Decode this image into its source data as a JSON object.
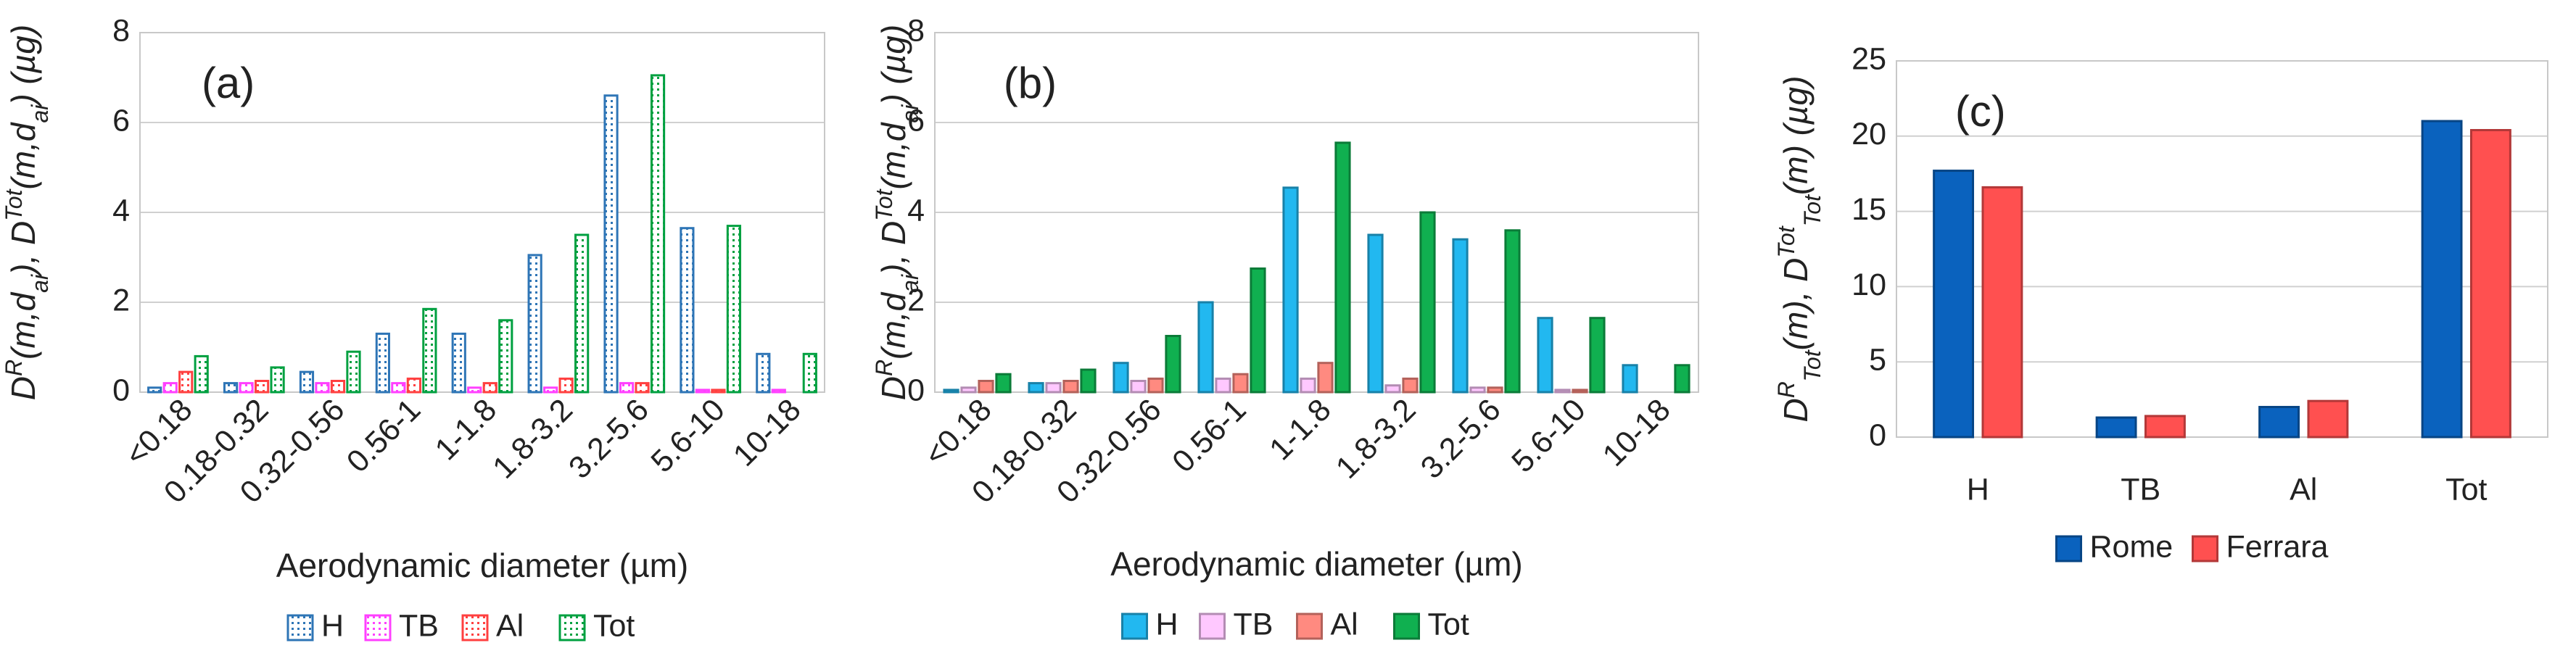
{
  "chart_data": [
    {
      "type": "bar",
      "panel_label": "(a)",
      "pattern_fill": true,
      "categories": [
        "<0.18",
        "0.18-0.32",
        "0.32-0.56",
        "0.56-1",
        "1-1.8",
        "1.8-3.2",
        "3.2-5.6",
        "5.6-10",
        "10-18"
      ],
      "series": [
        {
          "name": "H",
          "color": "#2e75b6",
          "values": [
            0.1,
            0.2,
            0.45,
            1.3,
            1.3,
            3.05,
            6.6,
            3.65,
            0.85
          ]
        },
        {
          "name": "TB",
          "color": "#ff40ff",
          "values": [
            0.2,
            0.2,
            0.2,
            0.2,
            0.1,
            0.1,
            0.2,
            0.05,
            0.05
          ]
        },
        {
          "name": "Al",
          "color": "#ff4040",
          "values": [
            0.45,
            0.25,
            0.25,
            0.3,
            0.2,
            0.3,
            0.2,
            0.05,
            0
          ]
        },
        {
          "name": "Tot",
          "color": "#00a040",
          "values": [
            0.8,
            0.55,
            0.9,
            1.85,
            1.6,
            3.5,
            7.05,
            3.7,
            0.85
          ]
        }
      ],
      "ylim": [
        0,
        8
      ],
      "yticks": [
        0,
        2,
        4,
        6,
        8
      ],
      "grid": true,
      "xlabel": "Aerodynamic diameter (µm)",
      "ylabel_parts": [
        {
          "text": "D"
        },
        {
          "text": "R",
          "shift": "super"
        },
        {
          "text": "(m,d"
        },
        {
          "text": "ai",
          "shift": "sub"
        },
        {
          "text": "), D"
        },
        {
          "text": "Tot",
          "shift": "super"
        },
        {
          "text": "(m,d"
        },
        {
          "text": "ai",
          "shift": "sub"
        },
        {
          "text": ") (µg)"
        }
      ]
    },
    {
      "type": "bar",
      "panel_label": "(b)",
      "pattern_fill": false,
      "categories": [
        "<0.18",
        "0.18-0.32",
        "0.32-0.56",
        "0.56-1",
        "1-1.8",
        "1.8-3.2",
        "3.2-5.6",
        "5.6-10",
        "10-18"
      ],
      "series": [
        {
          "name": "H",
          "color": "#22b8f0",
          "values": [
            0.05,
            0.2,
            0.65,
            2.0,
            4.55,
            3.5,
            3.4,
            1.65,
            0.6
          ]
        },
        {
          "name": "TB",
          "color": "#ffc8ff",
          "values": [
            0.1,
            0.2,
            0.25,
            0.3,
            0.3,
            0.15,
            0.1,
            0.05,
            0
          ]
        },
        {
          "name": "Al",
          "color": "#ff8a80",
          "values": [
            0.25,
            0.25,
            0.3,
            0.4,
            0.65,
            0.3,
            0.1,
            0.05,
            0
          ]
        },
        {
          "name": "Tot",
          "color": "#10b050",
          "values": [
            0.4,
            0.5,
            1.25,
            2.75,
            5.55,
            4.0,
            3.6,
            1.65,
            0.6
          ]
        }
      ],
      "ylim": [
        0,
        8
      ],
      "yticks": [
        0,
        2,
        4,
        6,
        8
      ],
      "grid": true,
      "xlabel": "Aerodynamic diameter (µm)",
      "ylabel_parts": [
        {
          "text": "D"
        },
        {
          "text": "R",
          "shift": "super"
        },
        {
          "text": "(m,d"
        },
        {
          "text": "ai",
          "shift": "sub"
        },
        {
          "text": "), D"
        },
        {
          "text": "Tot",
          "shift": "super"
        },
        {
          "text": "(m,d"
        },
        {
          "text": "ai",
          "shift": "sub"
        },
        {
          "text": ") (µg)"
        }
      ]
    },
    {
      "type": "bar",
      "panel_label": "(c)",
      "pattern_fill": false,
      "categories": [
        "H",
        "TB",
        "Al",
        "Tot"
      ],
      "series": [
        {
          "name": "Rome",
          "color": "#0a62be",
          "values": [
            17.7,
            1.3,
            2.0,
            21.0
          ]
        },
        {
          "name": "Ferrara",
          "color": "#ff5050",
          "values": [
            16.6,
            1.4,
            2.4,
            20.4
          ]
        }
      ],
      "ylim": [
        0,
        25
      ],
      "yticks": [
        0,
        5,
        10,
        15,
        20,
        25
      ],
      "grid": true,
      "ylabel_parts": [
        {
          "text": "D"
        },
        {
          "text": "R",
          "shift": "super"
        },
        {
          "text": "Tot",
          "shift": "sub"
        },
        {
          "text": "(m), D"
        },
        {
          "text": "Tot",
          "shift": "super"
        },
        {
          "text": "Tot",
          "shift": "sub"
        },
        {
          "text": "(m) (µg)"
        }
      ]
    }
  ]
}
